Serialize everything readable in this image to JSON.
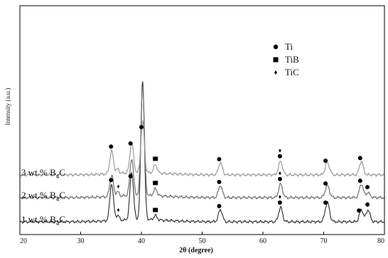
{
  "chart_data": {
    "type": "line",
    "xlabel": "2θ (degree)",
    "ylabel": "Intensity (a.u.)",
    "xlim": [
      20,
      80
    ],
    "x_ticks": [
      "20",
      "30",
      "40",
      "50",
      "60",
      "70",
      "80"
    ],
    "grid": false,
    "legend_position": "top-right",
    "legend": [
      {
        "label": "Ti",
        "marker": "circle"
      },
      {
        "label": "TiB",
        "marker": "square"
      },
      {
        "label": "TiC",
        "marker": "diamond"
      }
    ],
    "series": [
      {
        "name": "1 wt.% B4C",
        "label_main": "1 wt.% B",
        "label_sub": "4",
        "label_tail": "C",
        "color": "#3a3a3a",
        "peaks": [
          {
            "x": 35.1,
            "h": 52,
            "w": 0.42
          },
          {
            "x": 36.1,
            "h": 7,
            "w": 0.35
          },
          {
            "x": 38.4,
            "h": 67,
            "w": 0.42
          },
          {
            "x": 40.2,
            "h": 195,
            "w": 0.4
          },
          {
            "x": 42.3,
            "h": 6,
            "w": 0.4
          },
          {
            "x": 53.0,
            "h": 17,
            "w": 0.45
          },
          {
            "x": 62.9,
            "h": 20,
            "w": 0.45
          },
          {
            "x": 70.6,
            "h": 27,
            "w": 0.5
          },
          {
            "x": 76.2,
            "h": 17,
            "w": 0.45
          },
          {
            "x": 77.3,
            "h": 17,
            "w": 0.45
          }
        ]
      },
      {
        "name": "2 wt.% B4C",
        "label_main": "2 wt.% B",
        "label_sub": "4",
        "label_tail": "C",
        "color": "#6e6e6e",
        "peaks": [
          {
            "x": 35.1,
            "h": 30,
            "w": 0.42
          },
          {
            "x": 36.1,
            "h": 6,
            "w": 0.35
          },
          {
            "x": 38.4,
            "h": 52,
            "w": 0.42
          },
          {
            "x": 40.2,
            "h": 155,
            "w": 0.4
          },
          {
            "x": 42.3,
            "h": 10,
            "w": 0.4
          },
          {
            "x": 53.0,
            "h": 17,
            "w": 0.45
          },
          {
            "x": 62.9,
            "h": 19,
            "w": 0.45
          },
          {
            "x": 70.6,
            "h": 17,
            "w": 0.5
          },
          {
            "x": 76.2,
            "h": 19,
            "w": 0.45
          },
          {
            "x": 77.3,
            "h": 7,
            "w": 0.45
          }
        ]
      },
      {
        "name": "3 wt.% B4C",
        "label_main": "3 wt.% B",
        "label_sub": "4",
        "label_tail": "C",
        "color": "#9a9a9a",
        "peaks": [
          {
            "x": 35.1,
            "h": 32,
            "w": 0.42
          },
          {
            "x": 36.1,
            "h": 6,
            "w": 0.35
          },
          {
            "x": 38.4,
            "h": 42,
            "w": 0.42
          },
          {
            "x": 40.2,
            "h": 72,
            "w": 0.4
          },
          {
            "x": 42.3,
            "h": 12,
            "w": 0.4
          },
          {
            "x": 53.0,
            "h": 17,
            "w": 0.45
          },
          {
            "x": 62.9,
            "h": 19,
            "w": 0.45
          },
          {
            "x": 70.6,
            "h": 17,
            "w": 0.5
          },
          {
            "x": 76.2,
            "h": 19,
            "w": 0.45
          }
        ]
      }
    ],
    "phase_markers": [
      {
        "x": 35.0,
        "series": "1 wt.% B4C",
        "phase": "Ti"
      },
      {
        "x": 36.2,
        "series": "1 wt.% B4C",
        "phase": "TiC"
      },
      {
        "x": 38.2,
        "series": "1 wt.% B4C",
        "phase": "Ti"
      },
      {
        "x": 42.3,
        "series": "1 wt.% B4C",
        "phase": "TiB"
      },
      {
        "x": 52.8,
        "series": "1 wt.% B4C",
        "phase": "Ti"
      },
      {
        "x": 62.8,
        "series": "1 wt.% B4C",
        "phase": "Ti"
      },
      {
        "x": 62.8,
        "series": "1 wt.% B4C",
        "phase": "TiC"
      },
      {
        "x": 70.3,
        "series": "1 wt.% B4C",
        "phase": "Ti"
      },
      {
        "x": 75.8,
        "series": "1 wt.% B4C",
        "phase": "Ti"
      },
      {
        "x": 77.2,
        "series": "1 wt.% B4C",
        "phase": "Ti"
      },
      {
        "x": 36.2,
        "series": "2 wt.% B4C",
        "phase": "TiC"
      },
      {
        "x": 42.3,
        "series": "2 wt.% B4C",
        "phase": "TiB"
      },
      {
        "x": 52.8,
        "series": "2 wt.% B4C",
        "phase": "Ti"
      },
      {
        "x": 62.8,
        "series": "2 wt.% B4C",
        "phase": "Ti"
      },
      {
        "x": 62.8,
        "series": "2 wt.% B4C",
        "phase": "TiC"
      },
      {
        "x": 70.3,
        "series": "2 wt.% B4C",
        "phase": "Ti"
      },
      {
        "x": 76.0,
        "series": "2 wt.% B4C",
        "phase": "Ti"
      },
      {
        "x": 77.2,
        "series": "2 wt.% B4C",
        "phase": "Ti"
      },
      {
        "x": 35.0,
        "series": "3 wt.% B4C",
        "phase": "Ti"
      },
      {
        "x": 38.2,
        "series": "3 wt.% B4C",
        "phase": "Ti"
      },
      {
        "x": 40.0,
        "series": "3 wt.% B4C",
        "phase": "Ti"
      },
      {
        "x": 42.3,
        "series": "3 wt.% B4C",
        "phase": "TiB"
      },
      {
        "x": 52.8,
        "series": "3 wt.% B4C",
        "phase": "Ti"
      },
      {
        "x": 62.8,
        "series": "3 wt.% B4C",
        "phase": "Ti"
      },
      {
        "x": 62.8,
        "series": "3 wt.% B4C",
        "phase": "TiC"
      },
      {
        "x": 70.3,
        "series": "3 wt.% B4C",
        "phase": "Ti"
      },
      {
        "x": 76.0,
        "series": "3 wt.% B4C",
        "phase": "Ti"
      }
    ]
  }
}
